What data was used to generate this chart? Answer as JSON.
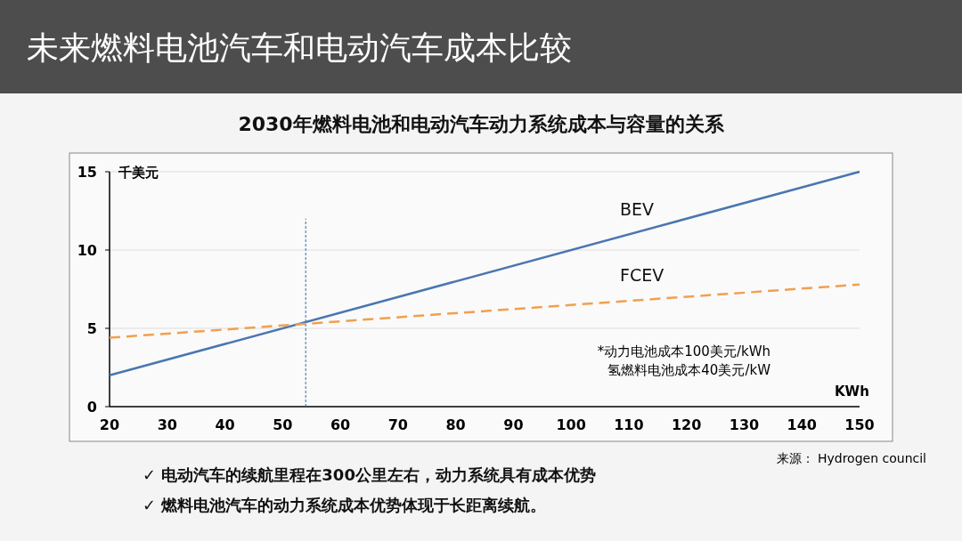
{
  "chart_data": {
    "type": "line",
    "title": "未来燃料电池汽车和电动汽车成本比较",
    "subtitle": "2030年燃料电池和电动汽车动力系统成本与容量的关系",
    "xlabel": "KWh",
    "ylabel": "千美元",
    "x": [
      20,
      150
    ],
    "series": [
      {
        "name": "BEV",
        "color": "#4a76b0",
        "values": [
          2.0,
          15.0
        ],
        "line_style": "solid"
      },
      {
        "name": "FCEV",
        "color": "#f0a050",
        "values": [
          4.4,
          7.8
        ],
        "line_style": "dashed"
      }
    ],
    "xlim": [
      20,
      150
    ],
    "xticks": [
      20,
      30,
      40,
      50,
      60,
      70,
      80,
      90,
      100,
      110,
      120,
      130,
      140,
      150
    ],
    "ylim": [
      0,
      15
    ],
    "yticks": [
      0,
      5,
      10,
      15
    ],
    "grid": "y",
    "ref_lines": [
      {
        "axis": "x",
        "value": 54,
        "color": "#2f6fa8",
        "line_style": "dashed"
      }
    ],
    "annotations": [
      "*动力电池成本100美元/kWh\n氢燃料电池成本40美元/kW",
      "来源： Hydrogen council",
      "✓  电动汽车的续航里程在300公里左右，动力系统具有成本优势",
      "✓  燃料电池汽车的动力系统成本优势体现于长距离续航。"
    ]
  }
}
